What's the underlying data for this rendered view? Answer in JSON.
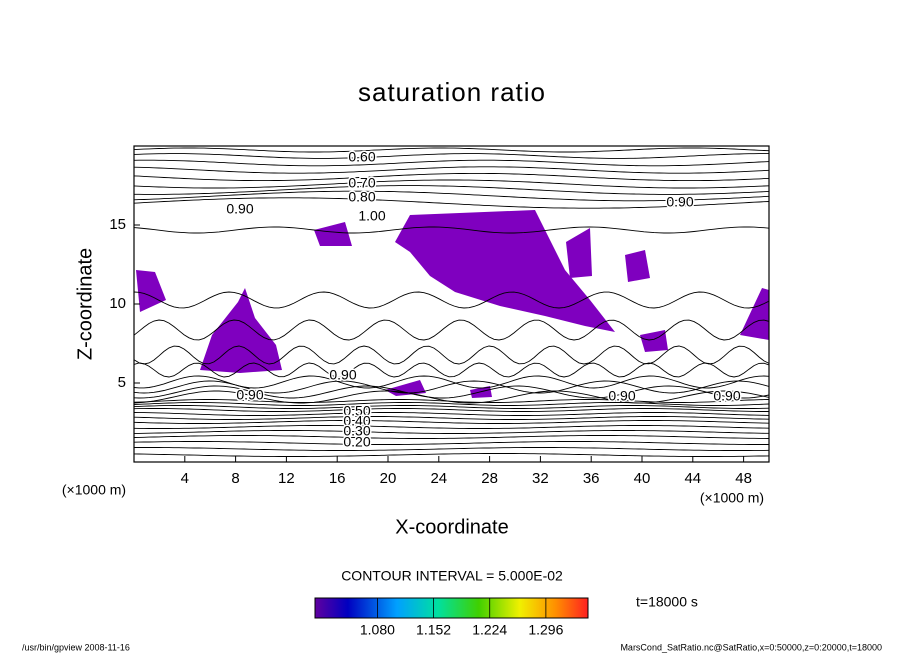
{
  "chart_data": {
    "type": "contour",
    "title": "saturation ratio",
    "x_label": "X-coordinate",
    "y_label": "Z-coordinate",
    "x_unit": "(×1000 m)",
    "y_unit": "(×1000 m)",
    "xlim": [
      0,
      50
    ],
    "ylim": [
      0,
      20
    ],
    "xticks": [
      4,
      8,
      12,
      16,
      20,
      24,
      28,
      32,
      36,
      40,
      44,
      48
    ],
    "yticks": [
      5,
      10,
      15
    ],
    "shade_color": "#7f00bf",
    "contour_labels": [
      "0.60",
      "0.70",
      "0.80",
      "0.90",
      "1.00",
      "0.90",
      "0.90",
      "0.90",
      "0.90",
      "0.90",
      "0.50",
      "0.40",
      "0.30",
      "0.20"
    ],
    "contour_interval": "CONTOUR INTERVAL = 5.000E-02",
    "colorbar_lim": [
      1.0,
      1.35
    ],
    "colorbar_ticks": [
      {
        "value": 1.08,
        "label": "1.080"
      },
      {
        "value": 1.152,
        "label": "1.152"
      },
      {
        "value": 1.224,
        "label": "1.224"
      },
      {
        "value": 1.296,
        "label": "1.296"
      }
    ],
    "time": "t=18000 s",
    "footer_left": "/usr/bin/gpview   2008-11-16",
    "footer_right": "MarsCond_SatRatio.nc@SatRatio,x=0:50000,z=0:20000,t=18000"
  }
}
